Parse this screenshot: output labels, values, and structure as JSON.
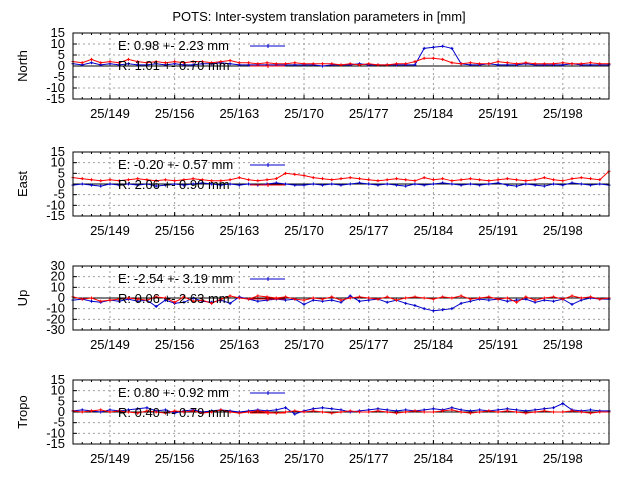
{
  "chart_data": {
    "type": "line",
    "title": "POTS: Inter-system translation parameters in [mm]",
    "x_ticks": [
      "25/149",
      "25/156",
      "25/163",
      "25/170",
      "25/177",
      "25/184",
      "25/191",
      "25/198"
    ],
    "x_tick_doy": [
      149,
      156,
      163,
      170,
      177,
      184,
      191,
      198
    ],
    "x_range": [
      145,
      203
    ],
    "x_doy": [
      145,
      146,
      147,
      148,
      149,
      150,
      151,
      152,
      153,
      154,
      155,
      156,
      157,
      158,
      159,
      160,
      161,
      162,
      163,
      164,
      165,
      166,
      167,
      168,
      169,
      170,
      171,
      172,
      173,
      174,
      175,
      176,
      177,
      178,
      179,
      180,
      181,
      182,
      183,
      184,
      185,
      186,
      187,
      188,
      189,
      190,
      191,
      192,
      193,
      194,
      195,
      196,
      197,
      198,
      199,
      200,
      201,
      202,
      203
    ],
    "colors": {
      "E": "#0000cc",
      "R": "#ff0000"
    },
    "panels": [
      {
        "ylabel": "North",
        "ylim": [
          -15,
          15
        ],
        "yticks": [
          15,
          10,
          5,
          0,
          -5,
          -10,
          -15
        ],
        "legend": [
          {
            "key": "E",
            "text": "E:   0.98 +- 2.23 mm"
          },
          {
            "key": "R",
            "text": "R:   1.01 +- 0.70 mm"
          }
        ],
        "series": [
          {
            "key": "E",
            "values": [
              1,
              0.5,
              1.5,
              0.5,
              1,
              0.5,
              1,
              0.5,
              0.5,
              1,
              0.5,
              1,
              0.5,
              0.5,
              1,
              1,
              1.5,
              1,
              0.5,
              0.5,
              0.5,
              0.5,
              0.5,
              0.5,
              0.5,
              0.5,
              0.5,
              0,
              0.5,
              0.5,
              0.5,
              1,
              0.5,
              0.5,
              0.5,
              0.5,
              0.5,
              0.5,
              8,
              8.5,
              9,
              8,
              1,
              0.5,
              0.5,
              1,
              0.5,
              0.5,
              0.5,
              1,
              0.5,
              0.5,
              0.5,
              0.5,
              1,
              0.5,
              0.5,
              0.5,
              0.5
            ]
          },
          {
            "key": "R",
            "values": [
              2,
              1.5,
              3,
              1.5,
              2,
              1.5,
              3,
              2,
              1.5,
              2,
              1.5,
              2,
              1.5,
              2,
              2,
              1.5,
              2,
              2.5,
              1.5,
              1.5,
              1,
              1.5,
              1,
              1,
              1.5,
              1,
              1,
              1,
              1,
              0.5,
              1,
              0.5,
              1,
              0.5,
              0.5,
              1,
              1,
              2,
              3.5,
              3.5,
              3,
              1.5,
              1,
              1.5,
              1,
              1,
              2,
              1.5,
              1,
              1.5,
              1,
              1,
              1,
              1.5,
              1,
              1,
              1.5,
              1,
              1
            ]
          }
        ]
      },
      {
        "ylabel": "East",
        "ylim": [
          -15,
          15
        ],
        "yticks": [
          15,
          10,
          5,
          0,
          -5,
          -10,
          -15
        ],
        "legend": [
          {
            "key": "E",
            "text": "E:  -0.20 +- 0.57 mm"
          },
          {
            "key": "R",
            "text": "R:   2.06 +- 0.90 mm"
          }
        ],
        "series": [
          {
            "key": "E",
            "values": [
              -0.5,
              0,
              -0.5,
              -1,
              0,
              -0.5,
              0,
              -0.5,
              0,
              -1,
              -0.5,
              0,
              -0.5,
              0,
              0.5,
              0,
              -0.5,
              0,
              -0.5,
              0,
              -0.5,
              0,
              0.5,
              0,
              -0.5,
              -0.5,
              0,
              -0.5,
              0,
              -0.5,
              0,
              0.5,
              0,
              -0.5,
              0,
              -0.5,
              -1,
              0,
              -0.5,
              0,
              0.5,
              0,
              -0.5,
              0,
              -0.5,
              0,
              0.5,
              -0.5,
              -1,
              0,
              -0.5,
              -1,
              0,
              -0.5,
              0.5,
              0,
              -0.5,
              0,
              -0.5
            ]
          },
          {
            "key": "R",
            "values": [
              3,
              2.5,
              2,
              1.5,
              2,
              1.5,
              2,
              2.5,
              2,
              1.5,
              2,
              1.5,
              2,
              2.5,
              2,
              1.5,
              1.5,
              2,
              3,
              2,
              1.5,
              2,
              2.5,
              5,
              4.5,
              4,
              3,
              2.5,
              2,
              2.5,
              3,
              2.5,
              2,
              1.5,
              2,
              2.5,
              2,
              1.5,
              3,
              2,
              2.5,
              1.5,
              2,
              2.5,
              2,
              1.5,
              2,
              2.5,
              2,
              1.5,
              2,
              3,
              2,
              1.5,
              2.5,
              3,
              2.5,
              2,
              6
            ]
          }
        ]
      },
      {
        "ylabel": "Up",
        "ylim": [
          -30,
          30
        ],
        "yticks": [
          30,
          20,
          10,
          0,
          -10,
          -20,
          -30
        ],
        "legend": [
          {
            "key": "E",
            "text": "E:  -2.54 +- 3.19 mm"
          },
          {
            "key": "R",
            "text": "R:   0.06 +- 2.63 mm"
          }
        ],
        "series": [
          {
            "key": "E",
            "values": [
              -2,
              -1,
              -3,
              -4,
              -2,
              -3,
              -1,
              -3,
              -2,
              -8,
              -2,
              -5,
              -4,
              0,
              -3,
              -4,
              -2,
              -5,
              1,
              -1,
              -3,
              -2,
              -1,
              -2,
              -1,
              -6,
              -2,
              -3,
              -2,
              -4,
              2,
              -3,
              -2,
              -1,
              -4,
              -2,
              -5,
              -7,
              -10,
              -12,
              -11,
              -10,
              -5,
              -3,
              -1,
              -2,
              -1,
              -3,
              -2,
              -1,
              -4,
              -2,
              -3,
              -1,
              -6,
              -2,
              0,
              -1,
              -1
            ]
          },
          {
            "key": "R",
            "values": [
              1,
              -1,
              0,
              -3,
              -2,
              -1,
              0,
              -1,
              -2,
              1,
              0,
              -4,
              1,
              -3,
              -2,
              -5,
              -1,
              2,
              0,
              -1,
              2,
              1,
              0,
              1,
              -1,
              -2,
              0,
              -1,
              1,
              -2,
              0,
              1,
              0,
              -1,
              1,
              -2,
              0,
              1,
              0,
              -1,
              1,
              0,
              2,
              -1,
              0,
              1,
              -1,
              0,
              -4,
              1,
              -2,
              0,
              1,
              -1,
              2,
              0,
              1,
              -1,
              0
            ]
          }
        ]
      },
      {
        "ylabel": "Tropo",
        "ylim": [
          -15,
          15
        ],
        "yticks": [
          15,
          10,
          5,
          0,
          -5,
          -10,
          -15
        ],
        "legend": [
          {
            "key": "E",
            "text": "E:   0.80 +- 0.92 mm"
          },
          {
            "key": "R",
            "text": "R:   0.40 +- 0.79 mm"
          }
        ],
        "series": [
          {
            "key": "E",
            "values": [
              0.5,
              1,
              0.5,
              0,
              1,
              0.5,
              1,
              1.5,
              2,
              0.5,
              1,
              -0.5,
              0.5,
              1,
              0,
              0.5,
              1,
              0.5,
              0,
              0.5,
              1,
              0.5,
              1,
              2,
              -1,
              0.5,
              1.5,
              2,
              1.5,
              1,
              0,
              0.5,
              1,
              1.5,
              1,
              0.5,
              1,
              0.5,
              1,
              1.5,
              1,
              2,
              1,
              0.5,
              1,
              0.5,
              1,
              1.5,
              1,
              0.5,
              1,
              1.5,
              2,
              4,
              1,
              0.5,
              1,
              0.5,
              0.5
            ]
          },
          {
            "key": "R",
            "values": [
              0.5,
              0,
              0.5,
              1,
              0,
              0.5,
              0,
              -0.5,
              0.5,
              0,
              -0.5,
              0.5,
              0,
              0.5,
              -0.5,
              0,
              1,
              0,
              -0.5,
              0,
              0.5,
              0,
              -0.5,
              0,
              0.5,
              0,
              0.5,
              0,
              -0.5,
              0,
              0.5,
              0,
              0,
              0.5,
              0,
              -0.5,
              0,
              0.5,
              0,
              0,
              0.5,
              1,
              0,
              -0.5,
              0,
              0.5,
              0,
              0.5,
              0,
              -0.5,
              0,
              0.5,
              0,
              0,
              0.5,
              0,
              -0.5,
              0,
              0
            ]
          }
        ]
      }
    ]
  }
}
